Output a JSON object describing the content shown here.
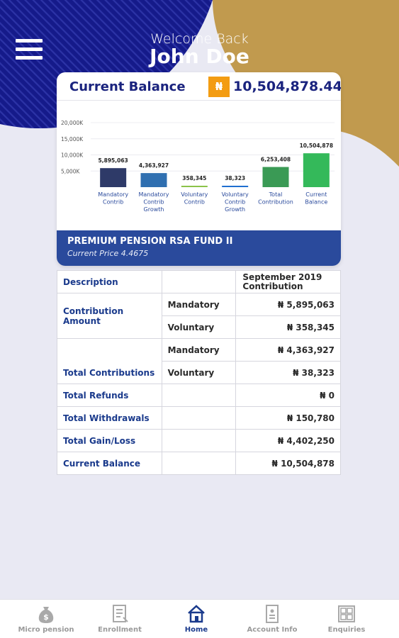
{
  "colors": {
    "navy": "#1a237e",
    "royal_blue": "#2a4a9c",
    "gold": "#c19a4e",
    "orange": "#f39c12",
    "background": "#e9e9f3"
  },
  "header": {
    "welcome_text": "Welcome Back",
    "user_name": "John Doe",
    "menu_icon": "hamburger-menu-icon"
  },
  "balance_card": {
    "title": "Current Balance",
    "currency_symbol": "₦",
    "amount": "10,504,878.44"
  },
  "chart_data": {
    "type": "bar",
    "title": "",
    "xlabel": "",
    "ylabel": "",
    "ylim": [
      0,
      20000
    ],
    "yticks": [
      "20,000K",
      "15,000K",
      "10,000K",
      "5,000K"
    ],
    "ytick_values": [
      20000,
      15000,
      10000,
      5000
    ],
    "grid": true,
    "categories": [
      [
        "Mandatory",
        "Contrib"
      ],
      [
        "Mandatory",
        "Contrib",
        "Growth"
      ],
      [
        "Voluntary",
        "Contrib"
      ],
      [
        "Voluntary",
        "Contrib",
        "Growth"
      ],
      [
        "Total",
        "Contribution"
      ],
      [
        "Current",
        "Balance"
      ]
    ],
    "values": [
      5895.063,
      4363.927,
      358.345,
      38.323,
      6253.408,
      10504.878
    ],
    "value_labels": [
      "5,895,063",
      "4,363,927",
      "358,345",
      "38,323",
      "6,253,408",
      "10,504,878"
    ],
    "colors": [
      "#2e3a68",
      "#2f6fb0",
      "#8bc34a",
      "#1f6fd0",
      "#3a9a55",
      "#34b95a"
    ]
  },
  "fund": {
    "name": "PREMIUM PENSION RSA FUND II",
    "price_label": "Current Price 4.4675"
  },
  "table": {
    "header_desc": "Description",
    "header_period": "September 2019 Contribution",
    "contribution_amount": "Contribution Amount",
    "mandatory": "Mandatory",
    "voluntary": "Voluntary",
    "ca_mandatory": "₦ 5,895,063",
    "ca_voluntary": "₦ 358,345",
    "total_contributions": "Total Contributions",
    "tc_mandatory": "₦ 4,363,927",
    "tc_voluntary": "₦ 38,323",
    "total_refunds": "Total Refunds",
    "total_refunds_val": "₦ 0",
    "total_withdrawals": "Total Withdrawals",
    "total_withdrawals_val": "₦ 150,780",
    "total_gain_loss": "Total Gain/Loss",
    "total_gain_loss_val": "₦ 4,402,250",
    "current_balance": "Current Balance",
    "current_balance_val": "₦ 10,504,878"
  },
  "bottom_nav": {
    "items": [
      {
        "label": "Micro pension",
        "icon": "money-bag-icon",
        "active": false
      },
      {
        "label": "Enrollment",
        "icon": "form-icon",
        "active": false
      },
      {
        "label": "Home",
        "icon": "home-icon",
        "active": true
      },
      {
        "label": "Account Info",
        "icon": "account-info-icon",
        "active": false
      },
      {
        "label": "Enquiries",
        "icon": "enquiries-icon",
        "active": false
      }
    ]
  }
}
